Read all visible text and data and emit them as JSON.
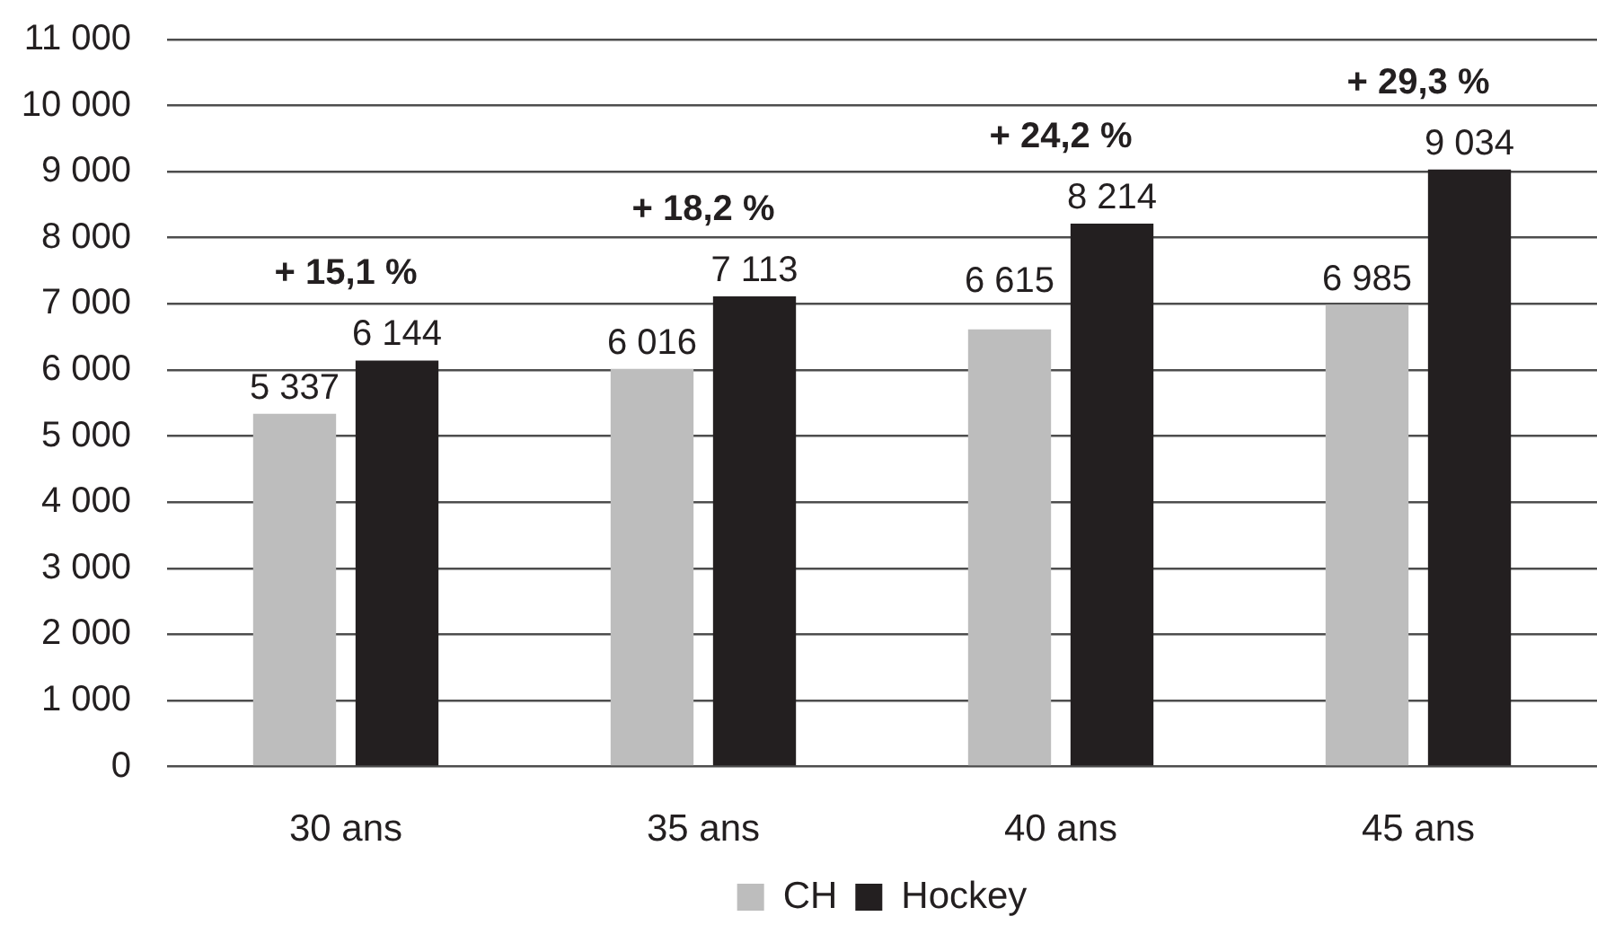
{
  "chart_data": {
    "type": "bar",
    "categories": [
      "30 ans",
      "35 ans",
      "40 ans",
      "45 ans"
    ],
    "series": [
      {
        "name": "CH",
        "color": "#bdbdbd",
        "values": [
          5337,
          6016,
          6615,
          6985
        ],
        "value_labels": [
          "5 337",
          "6 016",
          "6 615",
          "6 985"
        ]
      },
      {
        "name": "Hockey",
        "color": "#231f20",
        "values": [
          6144,
          7113,
          8214,
          9034
        ],
        "value_labels": [
          "6 144",
          "7 113",
          "8 214",
          "9 034"
        ]
      }
    ],
    "ylim": [
      0,
      11000
    ],
    "yticks": [
      0,
      {
        "value": 1000,
        "label": "1 000"
      },
      {
        "value": 2000,
        "label": "2 000"
      },
      {
        "value": 3000,
        "label": "3 000"
      },
      {
        "value": 4000,
        "label": "4 000"
      },
      {
        "value": 5000,
        "label": "5 000"
      },
      {
        "value": 6000,
        "label": "6 000"
      },
      {
        "value": 7000,
        "label": "7 000"
      },
      {
        "value": 8000,
        "label": "8 000"
      },
      {
        "value": 9000,
        "label": "9 000"
      },
      {
        "value": 10000,
        "label": "10 000"
      },
      {
        "value": 11000,
        "label": "11 000"
      }
    ],
    "grid": "y",
    "legend": "bottom",
    "annotations": [
      "+ 15,1 %",
      "+ 18,2 %",
      "+ 24,2 %",
      "+ 29,3 %"
    ]
  }
}
